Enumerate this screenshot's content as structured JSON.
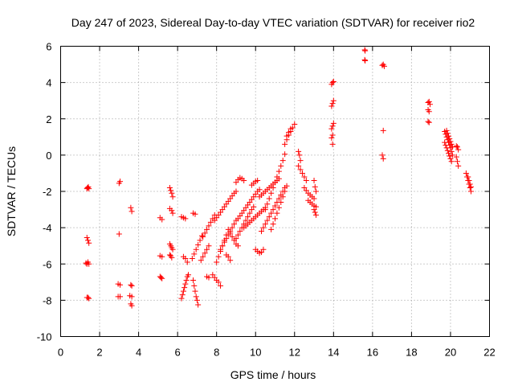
{
  "chart_data": {
    "type": "scatter",
    "title": "Day 247 of 2023, Sidereal Day-to-day VTEC variation (SDTVAR) for receiver rio2",
    "xlabel": "GPS time / hours",
    "ylabel": "SDTVAR / TECUs",
    "xlim": [
      0,
      22
    ],
    "ylim": [
      -10,
      6
    ],
    "xticks": [
      "0",
      "2",
      "4",
      "6",
      "8",
      "10",
      "12",
      "14",
      "16",
      "18",
      "20",
      "22"
    ],
    "yticks": [
      "-10",
      "-8",
      "-6",
      "-4",
      "-2",
      "0",
      "2",
      "4",
      "6"
    ],
    "grid": true,
    "marker": "+",
    "series_color": "#ff0000",
    "groups": [
      {
        "x": [
          1.35,
          1.38,
          1.42,
          1.45
        ],
        "y": [
          -1.85,
          -1.8,
          -1.75,
          -1.85
        ]
      },
      {
        "x": [
          1.35,
          1.4,
          1.45
        ],
        "y": [
          -4.55,
          -4.7,
          -4.85
        ]
      },
      {
        "x": [
          1.3,
          1.35,
          1.4,
          1.45
        ],
        "y": [
          -5.95,
          -6.0,
          -5.9,
          -6.0
        ]
      },
      {
        "x": [
          1.35,
          1.4,
          1.45
        ],
        "y": [
          -7.85,
          -7.85,
          -7.9
        ]
      },
      {
        "x": [
          3.0,
          3.05
        ],
        "y": [
          -1.55,
          -1.45
        ]
      },
      {
        "x": [
          3.0
        ],
        "y": [
          -4.35
        ]
      },
      {
        "x": [
          2.95,
          3.05
        ],
        "y": [
          -7.1,
          -7.15
        ]
      },
      {
        "x": [
          2.95,
          3.05
        ],
        "y": [
          -7.8,
          -7.8
        ]
      },
      {
        "x": [
          3.6,
          3.65
        ],
        "y": [
          -2.9,
          -3.1
        ]
      },
      {
        "x": [
          3.6,
          3.65
        ],
        "y": [
          -7.15,
          -7.2
        ]
      },
      {
        "x": [
          3.55,
          3.65
        ],
        "y": [
          -7.75,
          -7.8
        ]
      },
      {
        "x": [
          3.6,
          3.65
        ],
        "y": [
          -8.2,
          -8.3
        ]
      },
      {
        "x": [
          5.1,
          5.2
        ],
        "y": [
          -3.45,
          -3.55
        ]
      },
      {
        "x": [
          5.1,
          5.2
        ],
        "y": [
          -5.55,
          -5.6
        ]
      },
      {
        "x": [
          5.1,
          5.15,
          5.2
        ],
        "y": [
          -6.7,
          -6.75,
          -6.8
        ]
      },
      {
        "x": [
          5.6,
          5.65,
          5.7,
          5.75
        ],
        "y": [
          -1.8,
          -1.95,
          -2.1,
          -2.3
        ]
      },
      {
        "x": [
          5.6,
          5.7,
          5.75
        ],
        "y": [
          -2.95,
          -3.05,
          -3.2
        ]
      },
      {
        "x": [
          5.6,
          5.65,
          5.7,
          5.75
        ],
        "y": [
          -4.9,
          -5.0,
          -5.1,
          -5.2
        ]
      },
      {
        "x": [
          5.6,
          5.65,
          5.7
        ],
        "y": [
          -5.5,
          -5.55,
          -5.65
        ]
      },
      {
        "x": [
          6.2,
          6.3,
          6.4
        ],
        "y": [
          -3.4,
          -3.45,
          -3.5
        ]
      },
      {
        "x": [
          6.3,
          6.4,
          6.5
        ],
        "y": [
          -5.6,
          -5.7,
          -5.9
        ]
      },
      {
        "x": [
          6.2,
          6.25,
          6.3,
          6.35,
          6.4,
          6.45,
          6.5,
          6.55
        ],
        "y": [
          -7.9,
          -7.7,
          -7.5,
          -7.3,
          -7.1,
          -6.9,
          -6.7,
          -6.6
        ]
      },
      {
        "x": [
          6.8,
          6.9
        ],
        "y": [
          -3.2,
          -3.25
        ]
      },
      {
        "x": [
          6.75,
          6.85,
          6.95,
          7.05,
          7.15,
          7.25
        ],
        "y": [
          -5.7,
          -5.45,
          -5.2,
          -4.95,
          -4.7,
          -4.45
        ]
      },
      {
        "x": [
          6.8,
          6.85,
          6.9,
          6.95,
          7.0,
          7.05
        ],
        "y": [
          -6.9,
          -7.2,
          -7.5,
          -7.8,
          -8.0,
          -8.25
        ]
      },
      {
        "x": [
          7.2,
          7.3,
          7.4,
          7.5,
          7.6
        ],
        "y": [
          -5.8,
          -5.6,
          -5.4,
          -5.2,
          -5.0
        ]
      },
      {
        "x": [
          7.3,
          7.4,
          7.5,
          7.6,
          7.7,
          7.8,
          7.9
        ],
        "y": [
          -4.5,
          -4.3,
          -4.1,
          -3.9,
          -3.7,
          -3.5,
          -3.3
        ]
      },
      {
        "x": [
          7.5,
          7.6
        ],
        "y": [
          -6.7,
          -6.75
        ]
      },
      {
        "x": [
          7.8,
          7.9,
          8.0,
          8.1,
          8.2
        ],
        "y": [
          -6.6,
          -6.75,
          -6.9,
          -7.0,
          -7.2
        ]
      },
      {
        "x": [
          7.9,
          8.0,
          8.1,
          8.2,
          8.3,
          8.4,
          8.5,
          8.6,
          8.7,
          8.8,
          8.9,
          9.0
        ],
        "y": [
          -3.6,
          -3.45,
          -3.3,
          -3.15,
          -3.0,
          -2.85,
          -2.7,
          -2.55,
          -2.4,
          -2.25,
          -2.1,
          -2.0
        ]
      },
      {
        "x": [
          8.0,
          8.1,
          8.2,
          8.3,
          8.4,
          8.5,
          8.6
        ],
        "y": [
          -5.9,
          -5.6,
          -5.3,
          -5.0,
          -4.7,
          -4.4,
          -4.1
        ]
      },
      {
        "x": [
          8.2,
          8.3,
          8.4,
          8.5,
          8.6,
          8.7,
          8.8,
          8.9,
          9.0
        ],
        "y": [
          -5.2,
          -5.0,
          -4.8,
          -4.6,
          -4.4,
          -4.2,
          -4.0,
          -3.8,
          -3.6
        ]
      },
      {
        "x": [
          8.5,
          8.6,
          8.7
        ],
        "y": [
          -5.5,
          -5.6,
          -5.8
        ]
      },
      {
        "x": [
          8.7,
          8.8,
          8.9,
          9.0,
          9.1
        ],
        "y": [
          -4.3,
          -4.5,
          -4.7,
          -4.9,
          -5.0
        ]
      },
      {
        "x": [
          9.0,
          9.1,
          9.2,
          9.3,
          9.4
        ],
        "y": [
          -1.5,
          -1.35,
          -1.25,
          -1.3,
          -1.4
        ]
      },
      {
        "x": [
          9.0,
          9.1,
          9.2,
          9.3,
          9.4,
          9.5,
          9.6,
          9.7,
          9.8,
          9.9
        ],
        "y": [
          -4.6,
          -4.4,
          -4.2,
          -4.0,
          -3.8,
          -3.6,
          -3.4,
          -3.2,
          -3.0,
          -2.85
        ]
      },
      {
        "x": [
          9.1,
          9.2,
          9.3,
          9.4,
          9.5,
          9.6,
          9.7,
          9.8,
          9.9,
          10.0,
          10.1,
          10.2
        ],
        "y": [
          -3.5,
          -3.35,
          -3.2,
          -3.05,
          -2.9,
          -2.75,
          -2.6,
          -2.45,
          -2.3,
          -2.15,
          -2.0,
          -1.9
        ]
      },
      {
        "x": [
          9.4,
          9.5,
          9.6,
          9.7,
          9.8,
          9.9,
          10.0,
          10.1,
          10.2,
          10.3,
          10.4,
          10.5
        ],
        "y": [
          -4.0,
          -3.9,
          -3.8,
          -3.7,
          -3.6,
          -3.5,
          -3.4,
          -3.3,
          -3.2,
          -3.1,
          -3.0,
          -2.9
        ]
      },
      {
        "x": [
          9.8,
          9.9,
          10.0,
          10.1
        ],
        "y": [
          -1.65,
          -1.55,
          -1.45,
          -1.4
        ]
      },
      {
        "x": [
          10.0,
          10.1,
          10.2,
          10.3,
          10.4
        ],
        "y": [
          -5.2,
          -5.3,
          -5.4,
          -5.35,
          -5.2
        ]
      },
      {
        "x": [
          10.2,
          10.3,
          10.4,
          10.5,
          10.6,
          10.7,
          10.8,
          10.9,
          11.0,
          11.1,
          11.2
        ],
        "y": [
          -2.3,
          -2.2,
          -2.1,
          -2.0,
          -1.9,
          -1.8,
          -1.7,
          -1.6,
          -1.5,
          -1.4,
          -1.3
        ]
      },
      {
        "x": [
          10.3,
          10.4,
          10.5,
          10.6,
          10.7,
          10.8,
          10.9,
          11.0
        ],
        "y": [
          -4.2,
          -4.0,
          -3.8,
          -3.6,
          -3.4,
          -3.2,
          -3.0,
          -2.8
        ]
      },
      {
        "x": [
          10.5,
          10.6,
          10.7,
          10.8,
          10.9,
          11.0,
          11.1,
          11.2,
          11.3,
          11.4,
          11.5
        ],
        "y": [
          -3.0,
          -2.7,
          -2.4,
          -2.1,
          -1.8,
          -1.5,
          -1.2,
          -0.9,
          -0.6,
          -0.3,
          0.05
        ]
      },
      {
        "x": [
          10.8,
          10.9,
          11.0,
          11.1,
          11.2,
          11.3,
          11.4,
          11.5,
          11.6
        ],
        "y": [
          -4.1,
          -3.8,
          -3.5,
          -3.2,
          -2.9,
          -2.6,
          -2.3,
          -2.0,
          -1.7
        ]
      },
      {
        "x": [
          11.1,
          11.2,
          11.3,
          11.4,
          11.5
        ],
        "y": [
          -2.6,
          -2.4,
          -2.2,
          -2.0,
          -1.8
        ]
      },
      {
        "x": [
          11.5,
          11.6,
          11.7,
          11.8,
          11.9,
          12.0
        ],
        "y": [
          0.6,
          0.85,
          1.1,
          1.3,
          1.5,
          1.7
        ]
      },
      {
        "x": [
          11.6,
          11.7,
          11.8
        ],
        "y": [
          1.05,
          1.25,
          1.45
        ]
      },
      {
        "x": [
          12.2,
          12.25,
          12.3
        ],
        "y": [
          0.2,
          0.0,
          -0.3
        ]
      },
      {
        "x": [
          12.2,
          12.3,
          12.4,
          12.5,
          12.6
        ],
        "y": [
          -0.6,
          -0.8,
          -1.0,
          -1.2,
          -1.4
        ]
      },
      {
        "x": [
          12.5,
          12.6,
          12.7,
          12.8,
          12.9,
          13.0
        ],
        "y": [
          -1.8,
          -1.95,
          -2.1,
          -2.2,
          -2.3,
          -2.4
        ]
      },
      {
        "x": [
          12.7,
          12.8,
          12.9,
          13.0,
          13.1
        ],
        "y": [
          -2.5,
          -2.6,
          -2.7,
          -2.8,
          -2.85
        ]
      },
      {
        "x": [
          13.0,
          13.05,
          13.1
        ],
        "y": [
          -1.4,
          -1.75,
          -2.0
        ]
      },
      {
        "x": [
          13.0,
          13.05,
          13.1
        ],
        "y": [
          -3.0,
          -3.15,
          -3.3
        ]
      },
      {
        "x": [
          13.9,
          13.95,
          14.0
        ],
        "y": [
          3.9,
          4.0,
          4.05
        ]
      },
      {
        "x": [
          13.9,
          13.95,
          14.0
        ],
        "y": [
          2.7,
          2.85,
          3.0
        ]
      },
      {
        "x": [
          13.9,
          13.95,
          14.0
        ],
        "y": [
          1.45,
          1.6,
          1.75
        ]
      },
      {
        "x": [
          13.9,
          13.95
        ],
        "y": [
          0.95,
          1.1
        ]
      },
      {
        "x": [
          13.95
        ],
        "y": [
          0.6
        ]
      },
      {
        "x": [
          15.6,
          15.62
        ],
        "y": [
          5.8,
          5.75
        ]
      },
      {
        "x": [
          15.6,
          15.62
        ],
        "y": [
          5.25,
          5.2
        ]
      },
      {
        "x": [
          16.5,
          16.55,
          16.6
        ],
        "y": [
          4.95,
          5.0,
          4.9
        ]
      },
      {
        "x": [
          16.55
        ],
        "y": [
          1.35
        ]
      },
      {
        "x": [
          16.5,
          16.55
        ],
        "y": [
          0.0,
          -0.2
        ]
      },
      {
        "x": [
          18.85,
          18.9,
          18.95
        ],
        "y": [
          2.9,
          2.95,
          2.8
        ]
      },
      {
        "x": [
          18.85,
          18.9
        ],
        "y": [
          2.5,
          2.4
        ]
      },
      {
        "x": [
          18.85,
          18.9
        ],
        "y": [
          1.85,
          1.8
        ]
      },
      {
        "x": [
          19.7,
          19.75,
          19.8,
          19.85,
          19.9,
          19.95,
          20.0,
          20.05,
          20.1
        ],
        "y": [
          1.3,
          1.15,
          1.0,
          0.85,
          0.7,
          0.55,
          0.4,
          0.2,
          0.0
        ]
      },
      {
        "x": [
          19.7,
          19.75,
          19.8,
          19.85,
          19.9,
          19.95,
          20.0,
          20.05
        ],
        "y": [
          0.7,
          0.55,
          0.4,
          0.25,
          0.1,
          -0.05,
          -0.2,
          -0.35
        ]
      },
      {
        "x": [
          19.8,
          19.85,
          19.9,
          19.95,
          20.0,
          20.05,
          20.1
        ],
        "y": [
          1.35,
          1.2,
          1.05,
          0.9,
          0.75,
          0.6,
          0.45
        ]
      },
      {
        "x": [
          20.3,
          20.35,
          20.4
        ],
        "y": [
          0.5,
          0.45,
          0.3
        ]
      },
      {
        "x": [
          20.3,
          20.35,
          20.4
        ],
        "y": [
          -0.1,
          -0.35,
          -0.6
        ]
      },
      {
        "x": [
          20.8,
          20.85,
          20.9,
          20.95,
          21.0,
          21.05
        ],
        "y": [
          -1.0,
          -1.2,
          -1.4,
          -1.6,
          -1.8,
          -2.0
        ]
      },
      {
        "x": [
          20.9,
          20.95,
          21.0,
          21.05
        ],
        "y": [
          -1.2,
          -1.4,
          -1.6,
          -1.75
        ]
      }
    ]
  }
}
